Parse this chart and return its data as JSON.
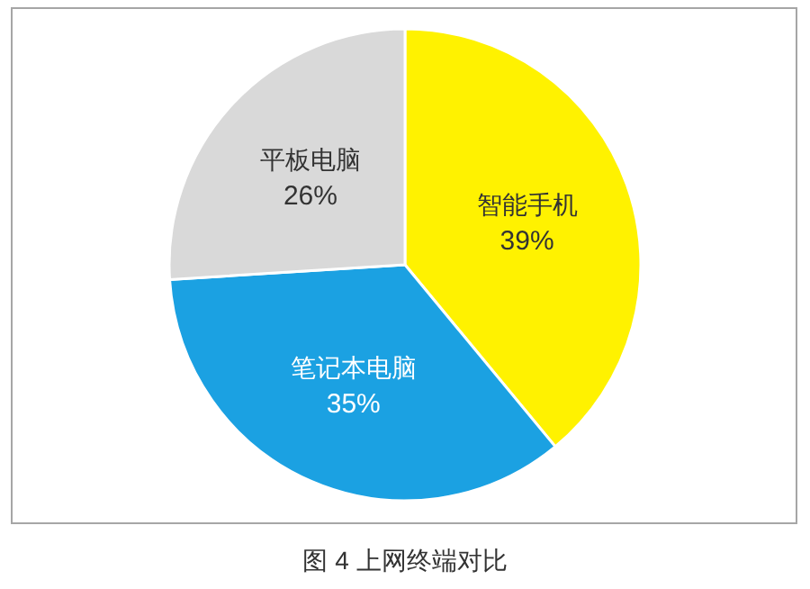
{
  "chart_data": {
    "type": "pie",
    "title": "图 4 上网终端对比",
    "categories": [
      "智能手机",
      "笔记本电脑",
      "平板电脑"
    ],
    "values": [
      39,
      35,
      26
    ],
    "colors": [
      "#fff200",
      "#1ba1e2",
      "#d9d9d9"
    ],
    "value_labels": [
      "39%",
      "35%",
      "26%"
    ]
  }
}
